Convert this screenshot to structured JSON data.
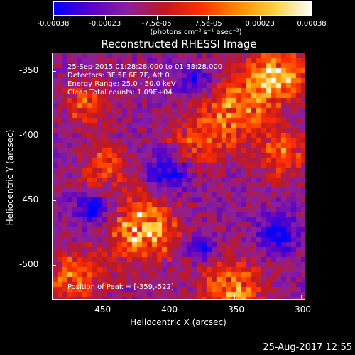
{
  "colorbar": {
    "tick_labels": [
      "-0.00038",
      "-0.00023",
      "-7.5e-05",
      "7.5e-05",
      "0.00023",
      "0.00038"
    ],
    "unit": "(photons cm⁻² s⁻¹ asec⁻²)",
    "colormap": [
      "#0000ff",
      "#5a00c8",
      "#8a20a0",
      "#c01820",
      "#ff3000",
      "#ff8a00",
      "#ffd040",
      "#ffffff"
    ]
  },
  "title": "Reconstructed RHESSI Image",
  "info_lines": [
    "25-Sep-2015 01:28:28.000 to 01:38:28.000",
    "Detectors: 3F 5F 6F 7F, Att 0",
    "Energy Range: 25.0 - 50.0 keV",
    "Clean     Total counts: 1.09E+04"
  ],
  "peak_text": "Position of Peak = [-359,-522]",
  "axes": {
    "xlabel": "Heliocentric X (arcsec)",
    "ylabel": "Heliocentric Y (arcsec)",
    "xticks": [
      "-450",
      "-400",
      "-350",
      "-300"
    ],
    "yticks": [
      "-350",
      "-400",
      "-450",
      "-500"
    ],
    "xlim": [
      -487,
      -297
    ],
    "ylim": [
      -527,
      -336
    ]
  },
  "timestamp": "25-Aug-2017 12:55"
}
